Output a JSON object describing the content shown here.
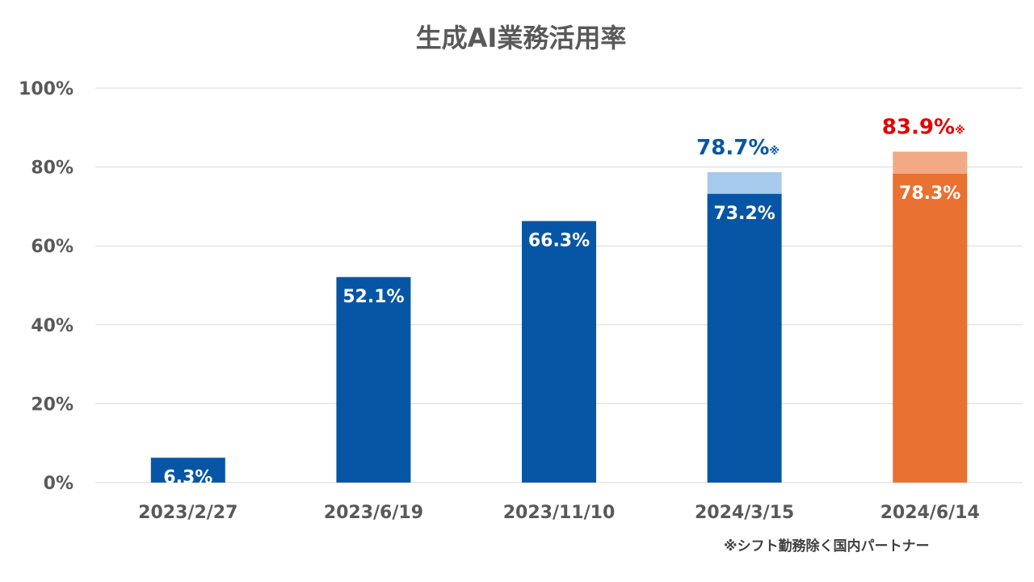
{
  "chart_data": {
    "type": "bar",
    "title": "生成AI業務活用率",
    "xlabel": "",
    "ylabel": "",
    "ylim": [
      0,
      100
    ],
    "yticks": [
      0,
      20,
      40,
      60,
      80,
      100
    ],
    "ytick_labels": [
      "0%",
      "20%",
      "40%",
      "60%",
      "80%",
      "100%"
    ],
    "grid": true,
    "categories": [
      "2023/2/27",
      "2023/6/19",
      "2023/11/10",
      "2024/3/15",
      "2024/6/14"
    ],
    "series": [
      {
        "values": [
          6.3,
          52.1,
          66.3,
          73.2,
          78.3
        ],
        "labels": [
          "6.3%",
          "52.1%",
          "66.3%",
          "73.2%",
          "78.3%"
        ]
      },
      {
        "values": [
          null,
          null,
          null,
          78.7,
          83.9
        ],
        "labels": [
          "",
          "",
          "",
          "78.7%",
          "83.9%"
        ],
        "label_suffix": "※"
      }
    ],
    "colors": {
      "base": "#0756a6",
      "base_highlight": "#e97132",
      "stack": "#a6caec",
      "stack_highlight": "#f1aa84",
      "total_label": "#0756a6",
      "total_label_highlight": "#e60000",
      "inner_label": "#ffffff",
      "axis_text": "#595959",
      "grid": "#d9d9d9"
    },
    "highlight_category_index": 4
  },
  "footnote": "※シフト勤務除く国内パートナー"
}
